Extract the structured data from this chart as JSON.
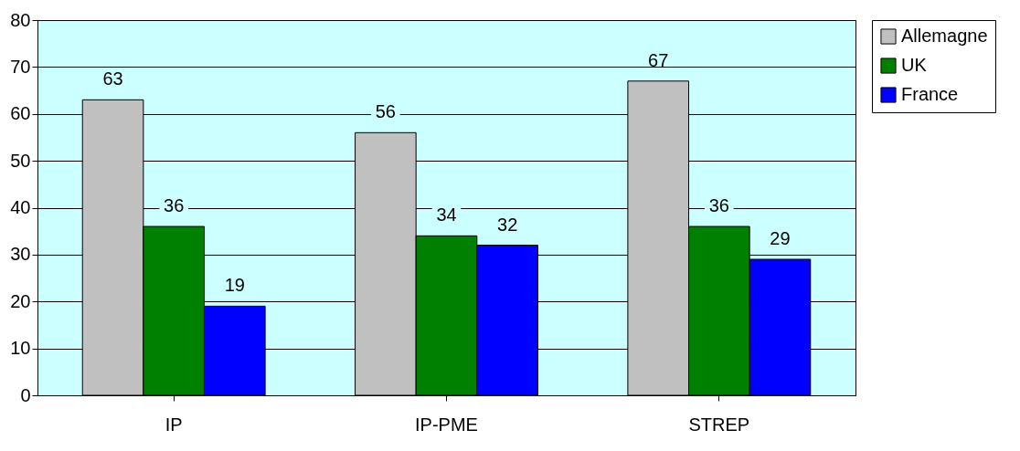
{
  "chart_data": {
    "type": "bar",
    "categories": [
      "IP",
      "IP-PME",
      "STREP"
    ],
    "series": [
      {
        "name": "Allemagne",
        "color": "#c0c0c0",
        "values": [
          63,
          56,
          67
        ]
      },
      {
        "name": "UK",
        "color": "#008000",
        "values": [
          36,
          34,
          36
        ]
      },
      {
        "name": "France",
        "color": "#0000ff",
        "values": [
          19,
          32,
          29
        ]
      }
    ],
    "ylim": [
      0,
      80
    ],
    "yticks": [
      0,
      10,
      20,
      30,
      40,
      50,
      60,
      70,
      80
    ],
    "grid": "y",
    "legend": "right",
    "data_labels": true
  }
}
